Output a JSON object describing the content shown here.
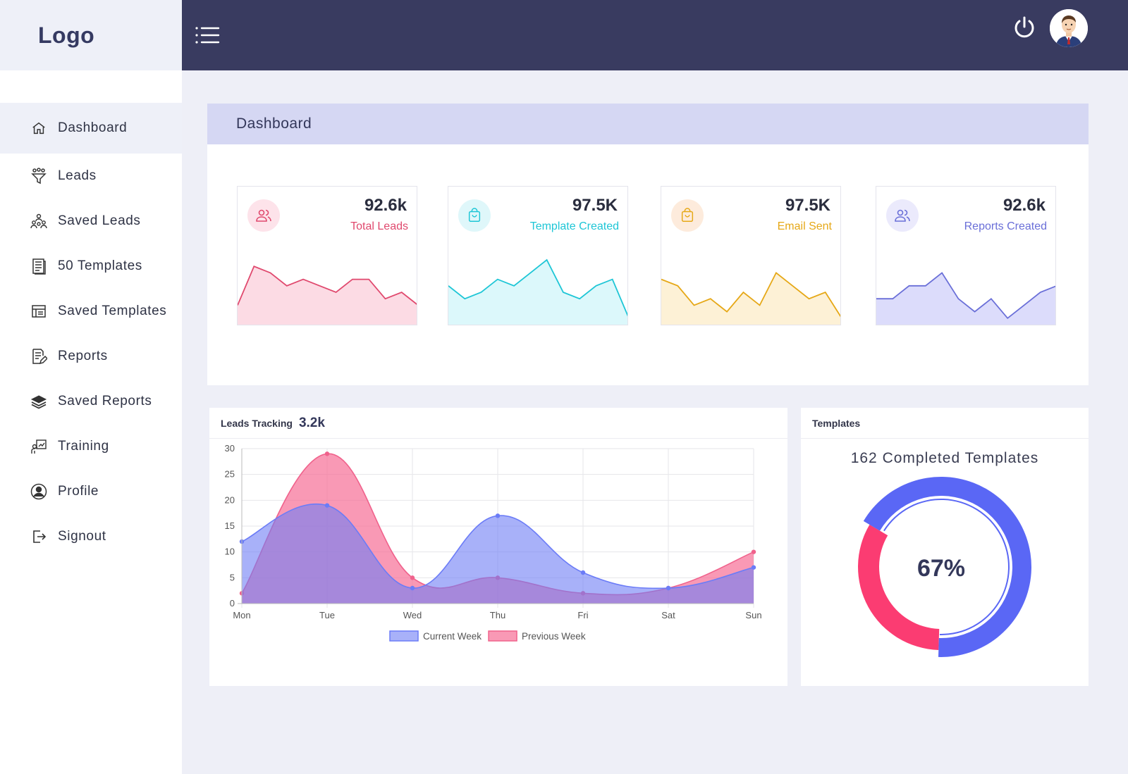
{
  "app": {
    "logo": "Logo"
  },
  "sidebar": {
    "items": [
      {
        "label": "Dashboard",
        "icon": "home-icon",
        "active": true
      },
      {
        "label": "Leads",
        "icon": "funnel-icon"
      },
      {
        "label": "Saved Leads",
        "icon": "people-group-icon"
      },
      {
        "label": "50 Templates",
        "icon": "document-icon"
      },
      {
        "label": "Saved Templates",
        "icon": "table-list-icon"
      },
      {
        "label": "Reports",
        "icon": "report-edit-icon"
      },
      {
        "label": "Saved Reports",
        "icon": "layers-icon"
      },
      {
        "label": "Training",
        "icon": "training-board-icon"
      },
      {
        "label": "Profile",
        "icon": "user-circle-icon"
      },
      {
        "label": "Signout",
        "icon": "signout-icon"
      }
    ]
  },
  "header": {
    "menu_icon": "list-menu-icon",
    "power_icon": "power-icon",
    "avatar_icon": "user-avatar-icon"
  },
  "dashboard": {
    "title": "Dashboard",
    "cards": [
      {
        "value": "92.6k",
        "label": "Total Leads",
        "icon": "users-icon",
        "color": "#e0496e",
        "fill": "#fcdbe4",
        "icon_bg": "#fde3ea",
        "trend": [
          3,
          9,
          8,
          6,
          7,
          6,
          5,
          7,
          7,
          4,
          5,
          3
        ]
      },
      {
        "value": "97.5K",
        "label": "Template Created",
        "icon": "bag-icon",
        "color": "#1ec6d6",
        "fill": "#dcf8fb",
        "icon_bg": "#dff7fa",
        "trend": [
          6,
          4,
          5,
          7,
          6,
          8,
          10,
          5,
          4,
          6,
          7,
          1
        ]
      },
      {
        "value": "97.5K",
        "label": "Email Sent",
        "icon": "bag-icon",
        "color": "#e6a817",
        "fill": "#fdf1d6",
        "icon_bg": "#fdebdc",
        "trend": [
          7,
          6,
          3,
          4,
          2,
          5,
          3,
          8,
          6,
          4,
          5,
          1
        ]
      },
      {
        "value": "92.6k",
        "label": "Reports Created",
        "icon": "users-icon",
        "color": "#6a6fd8",
        "fill": "#dcdcfb",
        "icon_bg": "#ebeafc",
        "trend": [
          4,
          4,
          6,
          6,
          8,
          4,
          2,
          4,
          1,
          3,
          5,
          6
        ]
      }
    ]
  },
  "leads": {
    "title": "Leads Tracking",
    "value": "3.2k"
  },
  "chart_data": {
    "type": "area",
    "categories": [
      "Mon",
      "Tue",
      "Wed",
      "Thu",
      "Fri",
      "Sat",
      "Sun"
    ],
    "series": [
      {
        "name": "Current Week",
        "values": [
          12,
          19,
          3,
          17,
          6,
          3,
          7
        ],
        "color": "#6b7cf7",
        "fill": "rgba(110,125,245,0.6)"
      },
      {
        "name": "Previous Week",
        "values": [
          2,
          29,
          5,
          5,
          2,
          3,
          10
        ],
        "color": "#f0628c",
        "fill": "rgba(246,110,150,0.7)"
      }
    ],
    "yticks": [
      0,
      5,
      10,
      15,
      20,
      25,
      30
    ],
    "ylim": [
      0,
      30
    ],
    "grid": true,
    "legend": "bottom"
  },
  "templates": {
    "title": "Templates",
    "subtitle": "162 Completed Templates",
    "percent_label": "67%",
    "percent": 67,
    "colors": {
      "completed": "#5a67f5",
      "remaining": "#fb3c72"
    }
  }
}
